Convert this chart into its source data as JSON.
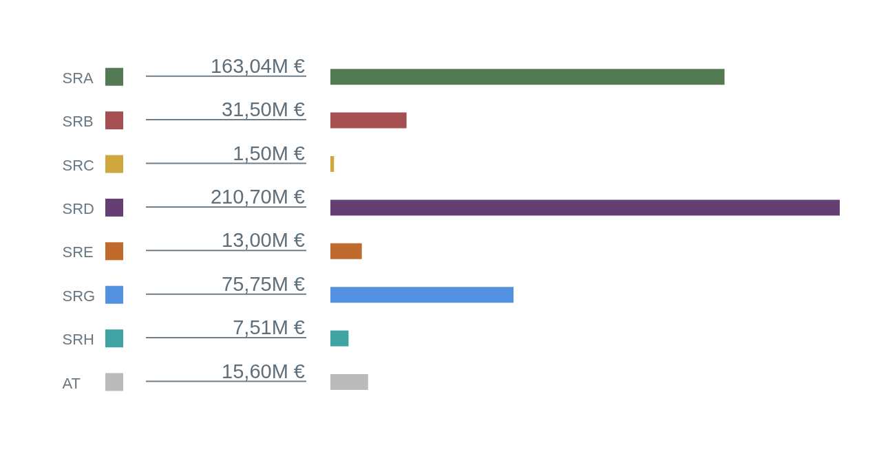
{
  "chart_data": {
    "type": "bar",
    "orientation": "horizontal",
    "categories": [
      "SRA",
      "SRB",
      "SRC",
      "SRD",
      "SRE",
      "SRG",
      "SRH",
      "AT"
    ],
    "values": [
      163.04,
      31.5,
      1.5,
      210.7,
      13.0,
      75.75,
      7.51,
      15.6
    ],
    "value_labels": [
      "163,04M €",
      "31,50M €",
      "1,50M €",
      "210,70M €",
      "13,00M €",
      "75,75M €",
      "7,51M €",
      "15,60M €"
    ],
    "colors": [
      "#537a53",
      "#a64f50",
      "#cfa73f",
      "#653f73",
      "#c06b2d",
      "#5390e0",
      "#40a3a3",
      "#bbbbbb"
    ],
    "tick_labels": "y"
  }
}
